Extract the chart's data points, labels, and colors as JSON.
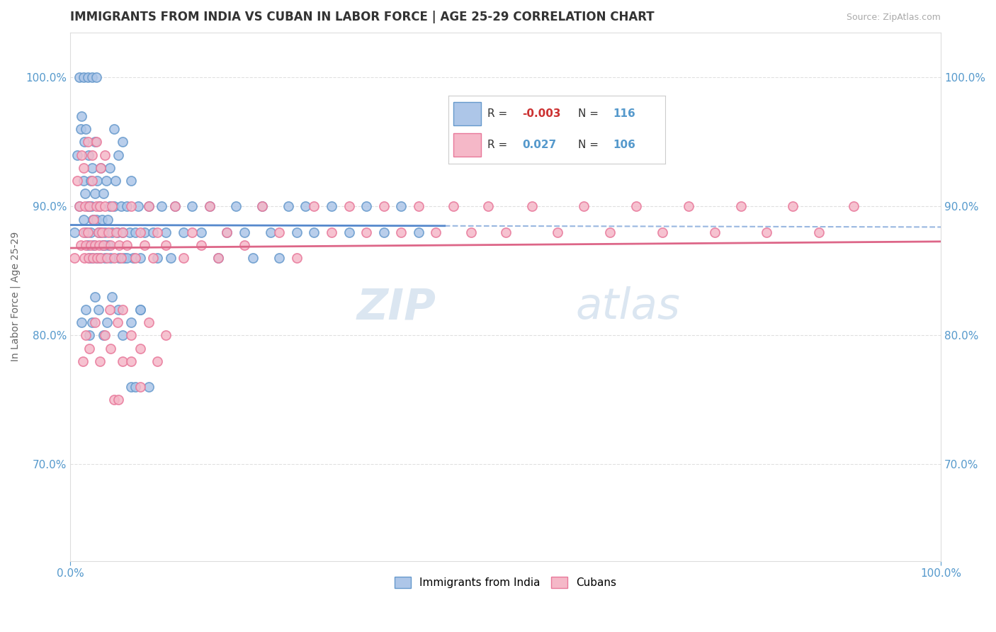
{
  "title": "IMMIGRANTS FROM INDIA VS CUBAN IN LABOR FORCE | AGE 25-29 CORRELATION CHART",
  "source": "Source: ZipAtlas.com",
  "ylabel": "In Labor Force | Age 25-29",
  "xlim": [
    0.0,
    1.0
  ],
  "ylim": [
    0.625,
    1.035
  ],
  "yticks": [
    0.7,
    0.8,
    0.9,
    1.0
  ],
  "ytick_labels": [
    "70.0%",
    "80.0%",
    "90.0%",
    "100.0%"
  ],
  "xticks": [
    0.0,
    1.0
  ],
  "xtick_labels": [
    "0.0%",
    "100.0%"
  ],
  "legend_r_india": "-0.003",
  "legend_n_india": "116",
  "legend_r_cuban": "0.027",
  "legend_n_cuban": "106",
  "india_fill_color": "#adc6e8",
  "cuban_fill_color": "#f5b8c8",
  "india_edge_color": "#6699cc",
  "cuban_edge_color": "#e8789a",
  "india_line_color": "#5588cc",
  "cuban_line_color": "#dd6688",
  "background_color": "#ffffff",
  "watermark_zip": "ZIP",
  "watermark_atlas": "atlas",
  "grid_color": "#cccccc",
  "title_color": "#333333",
  "tick_color": "#5599cc",
  "source_color": "#aaaaaa",
  "legend_r_color_india": "#cc3333",
  "legend_n_color": "#5599cc",
  "legend_r_color_cuban": "#5599cc",
  "india_scatter_x": [
    0.005,
    0.008,
    0.01,
    0.012,
    0.013,
    0.015,
    0.015,
    0.016,
    0.017,
    0.018,
    0.018,
    0.02,
    0.02,
    0.021,
    0.022,
    0.022,
    0.023,
    0.023,
    0.024,
    0.025,
    0.025,
    0.026,
    0.027,
    0.028,
    0.028,
    0.03,
    0.03,
    0.031,
    0.032,
    0.033,
    0.034,
    0.035,
    0.036,
    0.037,
    0.038,
    0.04,
    0.04,
    0.041,
    0.043,
    0.044,
    0.045,
    0.046,
    0.048,
    0.05,
    0.052,
    0.054,
    0.056,
    0.058,
    0.06,
    0.062,
    0.065,
    0.068,
    0.07,
    0.072,
    0.075,
    0.078,
    0.08,
    0.085,
    0.09,
    0.095,
    0.1,
    0.105,
    0.11,
    0.115,
    0.12,
    0.13,
    0.14,
    0.15,
    0.16,
    0.17,
    0.18,
    0.19,
    0.2,
    0.21,
    0.22,
    0.23,
    0.24,
    0.25,
    0.26,
    0.27,
    0.28,
    0.3,
    0.32,
    0.34,
    0.36,
    0.38,
    0.4,
    0.013,
    0.018,
    0.022,
    0.025,
    0.028,
    0.032,
    0.038,
    0.042,
    0.048,
    0.055,
    0.06,
    0.07,
    0.08,
    0.01,
    0.015,
    0.02,
    0.025,
    0.03,
    0.035,
    0.04,
    0.045,
    0.05,
    0.055,
    0.06,
    0.065,
    0.07,
    0.075,
    0.08,
    0.09
  ],
  "india_scatter_y": [
    0.88,
    0.94,
    0.9,
    0.96,
    0.97,
    0.92,
    0.89,
    0.95,
    0.91,
    0.88,
    0.96,
    0.9,
    0.87,
    0.94,
    0.9,
    0.86,
    0.92,
    0.88,
    0.9,
    0.86,
    0.93,
    0.89,
    0.87,
    0.91,
    0.95,
    0.89,
    0.86,
    0.92,
    0.88,
    0.9,
    0.86,
    0.93,
    0.89,
    0.87,
    0.91,
    0.88,
    0.86,
    0.92,
    0.89,
    0.87,
    0.9,
    0.86,
    0.88,
    0.9,
    0.92,
    0.88,
    0.86,
    0.9,
    0.88,
    0.86,
    0.9,
    0.88,
    0.92,
    0.86,
    0.88,
    0.9,
    0.86,
    0.88,
    0.9,
    0.88,
    0.86,
    0.9,
    0.88,
    0.86,
    0.9,
    0.88,
    0.9,
    0.88,
    0.9,
    0.86,
    0.88,
    0.9,
    0.88,
    0.86,
    0.9,
    0.88,
    0.86,
    0.9,
    0.88,
    0.9,
    0.88,
    0.9,
    0.88,
    0.9,
    0.88,
    0.9,
    0.88,
    0.81,
    0.82,
    0.8,
    0.81,
    0.83,
    0.82,
    0.8,
    0.81,
    0.83,
    0.82,
    0.8,
    0.81,
    0.82,
    1.0,
    1.0,
    1.0,
    1.0,
    1.0,
    0.88,
    0.87,
    0.93,
    0.96,
    0.94,
    0.95,
    0.86,
    0.76,
    0.76,
    0.82,
    0.76
  ],
  "cuban_scatter_x": [
    0.005,
    0.008,
    0.01,
    0.012,
    0.013,
    0.015,
    0.016,
    0.017,
    0.018,
    0.02,
    0.021,
    0.022,
    0.023,
    0.025,
    0.026,
    0.027,
    0.028,
    0.03,
    0.031,
    0.032,
    0.033,
    0.034,
    0.035,
    0.036,
    0.038,
    0.04,
    0.042,
    0.044,
    0.046,
    0.048,
    0.05,
    0.053,
    0.056,
    0.058,
    0.06,
    0.065,
    0.07,
    0.075,
    0.08,
    0.085,
    0.09,
    0.095,
    0.1,
    0.11,
    0.12,
    0.13,
    0.14,
    0.15,
    0.16,
    0.17,
    0.18,
    0.2,
    0.22,
    0.24,
    0.26,
    0.28,
    0.3,
    0.32,
    0.34,
    0.36,
    0.38,
    0.4,
    0.42,
    0.44,
    0.46,
    0.48,
    0.5,
    0.53,
    0.56,
    0.59,
    0.62,
    0.65,
    0.68,
    0.71,
    0.74,
    0.77,
    0.8,
    0.83,
    0.86,
    0.9,
    0.014,
    0.018,
    0.022,
    0.028,
    0.034,
    0.04,
    0.046,
    0.054,
    0.06,
    0.07,
    0.08,
    0.09,
    0.1,
    0.11,
    0.015,
    0.02,
    0.025,
    0.03,
    0.035,
    0.04,
    0.045,
    0.05,
    0.055,
    0.06,
    0.07,
    0.08
  ],
  "cuban_scatter_y": [
    0.86,
    0.92,
    0.9,
    0.87,
    0.94,
    0.88,
    0.86,
    0.9,
    0.87,
    0.88,
    0.86,
    0.9,
    0.87,
    0.92,
    0.86,
    0.89,
    0.87,
    0.9,
    0.86,
    0.88,
    0.87,
    0.9,
    0.86,
    0.88,
    0.87,
    0.9,
    0.86,
    0.88,
    0.87,
    0.9,
    0.86,
    0.88,
    0.87,
    0.86,
    0.88,
    0.87,
    0.9,
    0.86,
    0.88,
    0.87,
    0.9,
    0.86,
    0.88,
    0.87,
    0.9,
    0.86,
    0.88,
    0.87,
    0.9,
    0.86,
    0.88,
    0.87,
    0.9,
    0.88,
    0.86,
    0.9,
    0.88,
    0.9,
    0.88,
    0.9,
    0.88,
    0.9,
    0.88,
    0.9,
    0.88,
    0.9,
    0.88,
    0.9,
    0.88,
    0.9,
    0.88,
    0.9,
    0.88,
    0.9,
    0.88,
    0.9,
    0.88,
    0.9,
    0.88,
    0.9,
    0.78,
    0.8,
    0.79,
    0.81,
    0.78,
    0.8,
    0.79,
    0.81,
    0.78,
    0.8,
    0.79,
    0.81,
    0.78,
    0.8,
    0.93,
    0.95,
    0.94,
    0.95,
    0.93,
    0.94,
    0.82,
    0.75,
    0.75,
    0.82,
    0.78,
    0.76
  ]
}
